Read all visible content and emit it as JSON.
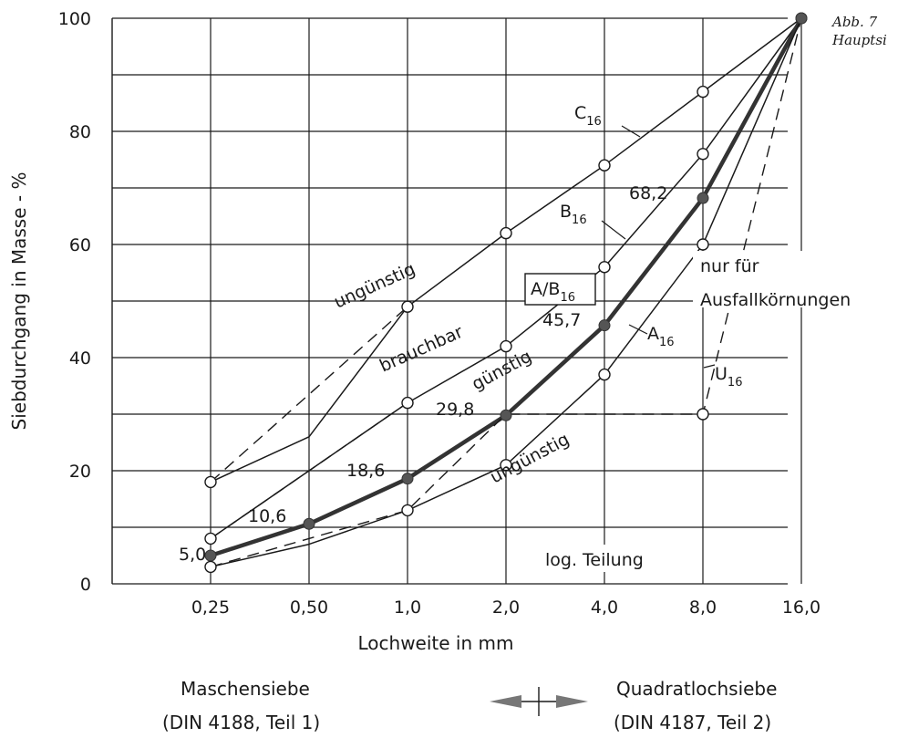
{
  "corner_caption": {
    "line1": "Abb. 7",
    "line2": "Hauptsi"
  },
  "chart_data": {
    "type": "line",
    "xlabel": "Lochweite in mm",
    "ylabel": "Siebdurchgang in Masse - %",
    "x_scale": "log2",
    "x": [
      0.25,
      0.5,
      1.0,
      2.0,
      4.0,
      8.0,
      16.0
    ],
    "x_tick_labels": [
      "0,25",
      "0,50",
      "1,0",
      "2,0",
      "4,0",
      "8,0",
      "16,0"
    ],
    "y_ticks": [
      "0",
      "20",
      "40",
      "60",
      "80",
      "100"
    ],
    "ylim": [
      0,
      100
    ],
    "grid": true,
    "series": [
      {
        "name": "C",
        "subscript": "16",
        "style": "thin",
        "values": [
          18,
          26,
          49,
          62,
          74,
          87,
          100
        ]
      },
      {
        "name": "B",
        "subscript": "16",
        "style": "thin",
        "values": [
          8,
          20,
          32,
          42,
          56,
          76,
          100
        ]
      },
      {
        "name": "A/B",
        "subscript": "16",
        "style": "bold",
        "values": [
          5.0,
          10.6,
          18.6,
          29.8,
          45.7,
          68.2,
          100
        ]
      },
      {
        "name": "A",
        "subscript": "16",
        "style": "thin",
        "values": [
          3,
          7,
          13,
          21,
          37,
          60,
          100
        ]
      },
      {
        "name": "U",
        "subscript": "16",
        "style": "dashed",
        "points": [
          [
            0.25,
            3
          ],
          [
            1.0,
            13
          ],
          [
            2.0,
            30
          ],
          [
            8.0,
            30
          ],
          [
            16.0,
            100
          ]
        ]
      }
    ],
    "dashed_guides": [
      [
        [
          0.25,
          18
        ],
        [
          1.0,
          49
        ]
      ],
      [
        [
          0.25,
          8
        ],
        [
          1.0,
          32
        ]
      ]
    ],
    "data_labels": [
      "5,0",
      "10,6",
      "18,6",
      "29,8",
      "45,7",
      "68,2"
    ],
    "annotations": {
      "ungunstig_top": "ungünstig",
      "brauchbar": "brauchbar",
      "gunstig": "günstig",
      "ungunstig_bottom": "ungünstig",
      "nur_fur": "nur für",
      "ausfall": "Ausfallkörnungen",
      "log": "log. Teilung"
    }
  },
  "footer": {
    "left_line1": "Maschensiebe",
    "left_line2": "(DIN 4188, Teil 1)",
    "right_line1": "Quadratlochsiebe",
    "right_line2": "(DIN 4187, Teil 2)"
  }
}
